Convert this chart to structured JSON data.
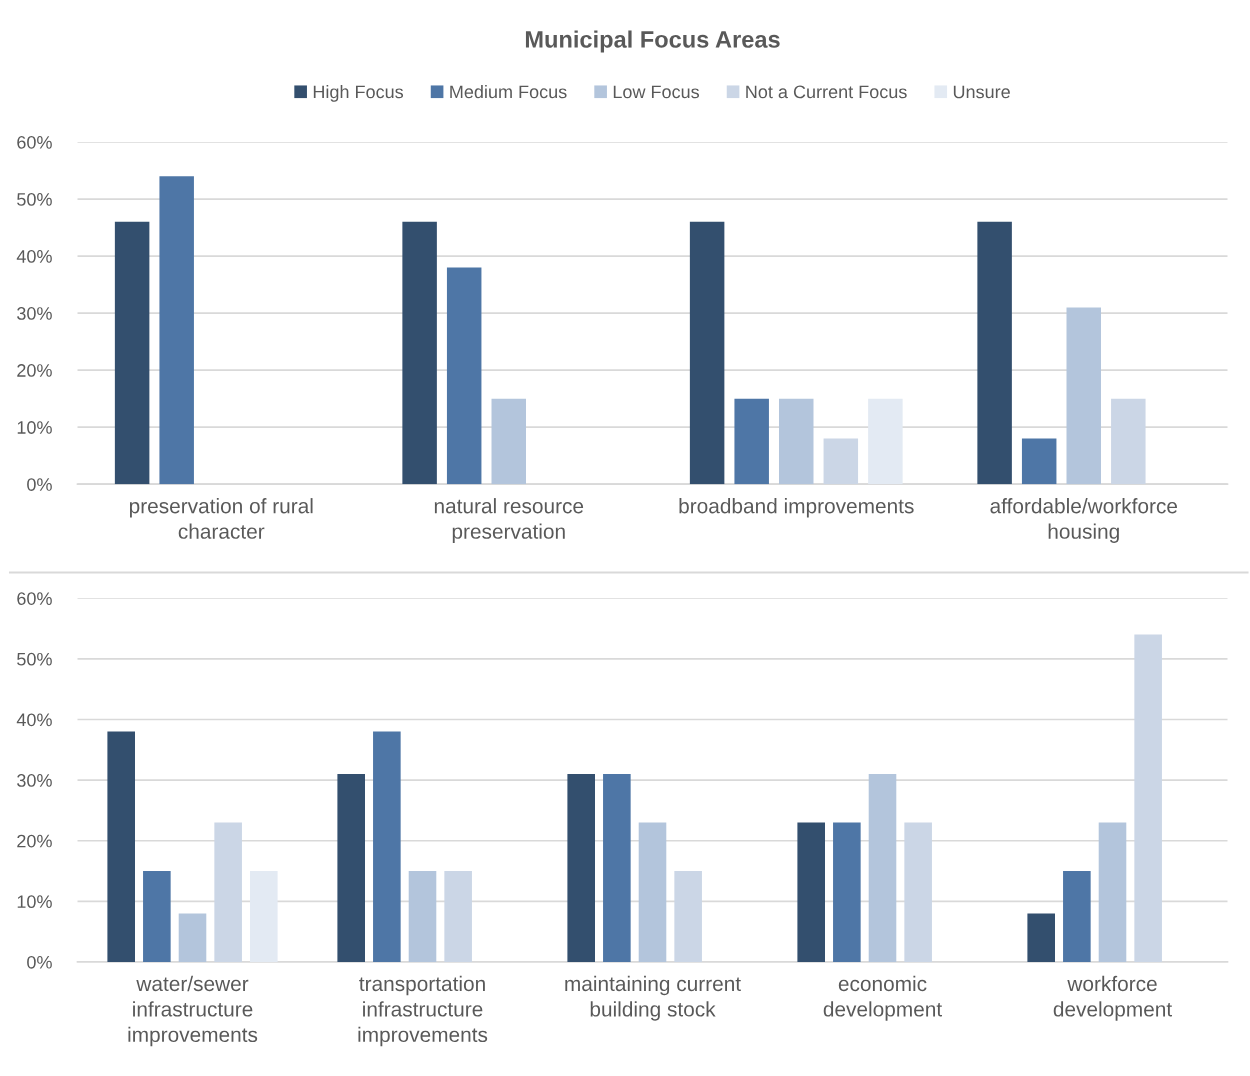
{
  "chart_data": [
    {
      "type": "bar",
      "title": "Municipal Focus Areas",
      "categories": [
        "preservation of rural\ncharacter",
        "natural resource\npreservation",
        "broadband improvements",
        "affordable/workforce\nhousing"
      ],
      "series": [
        {
          "name": "High Focus",
          "color": "#334f6e",
          "values": [
            46,
            46,
            46,
            46
          ]
        },
        {
          "name": "Medium Focus",
          "color": "#4e76a6",
          "values": [
            54,
            38,
            15,
            8
          ]
        },
        {
          "name": "Low Focus",
          "color": "#b3c5dc",
          "values": [
            null,
            15,
            15,
            31
          ]
        },
        {
          "name": "Not a Current Focus",
          "color": "#cbd6e6",
          "values": [
            null,
            null,
            8,
            15
          ]
        },
        {
          "name": "Unsure",
          "color": "#e3eaf3",
          "values": [
            null,
            null,
            15,
            null
          ]
        }
      ],
      "ylim": [
        0,
        60
      ],
      "yticks": [
        {
          "value": 0,
          "label": "0%"
        },
        {
          "value": 10,
          "label": "10%"
        },
        {
          "value": 20,
          "label": "20%"
        },
        {
          "value": 30,
          "label": "30%"
        },
        {
          "value": 40,
          "label": "40%"
        },
        {
          "value": 50,
          "label": "50%"
        },
        {
          "value": 60,
          "label": "60%"
        }
      ],
      "grid": "y",
      "legend": "top"
    },
    {
      "type": "bar",
      "categories": [
        "water/sewer\ninfrastructure\nimprovements",
        "transportation\ninfrastructure\nimprovements",
        "maintaining current\nbuilding stock",
        "economic\ndevelopment",
        "workforce\ndevelopment"
      ],
      "series": [
        {
          "color": "#334f6e",
          "values": [
            38,
            31,
            31,
            23,
            8
          ]
        },
        {
          "color": "#4e76a6",
          "values": [
            15,
            38,
            31,
            23,
            15
          ]
        },
        {
          "color": "#b3c5dc",
          "values": [
            8,
            15,
            23,
            31,
            23
          ]
        },
        {
          "color": "#cbd6e6",
          "values": [
            23,
            15,
            15,
            23,
            54
          ]
        },
        {
          "color": "#e3eaf3",
          "values": [
            15,
            null,
            null,
            null,
            null
          ]
        }
      ],
      "ylim": [
        0,
        60
      ],
      "yticks": [
        {
          "value": 0,
          "label": "0%"
        },
        {
          "value": 10,
          "label": "10%"
        },
        {
          "value": 20,
          "label": "20%"
        },
        {
          "value": 30,
          "label": "30%"
        },
        {
          "value": 40,
          "label": "40%"
        },
        {
          "value": 50,
          "label": "50%"
        },
        {
          "value": 60,
          "label": "60%"
        }
      ],
      "grid": "y"
    }
  ]
}
